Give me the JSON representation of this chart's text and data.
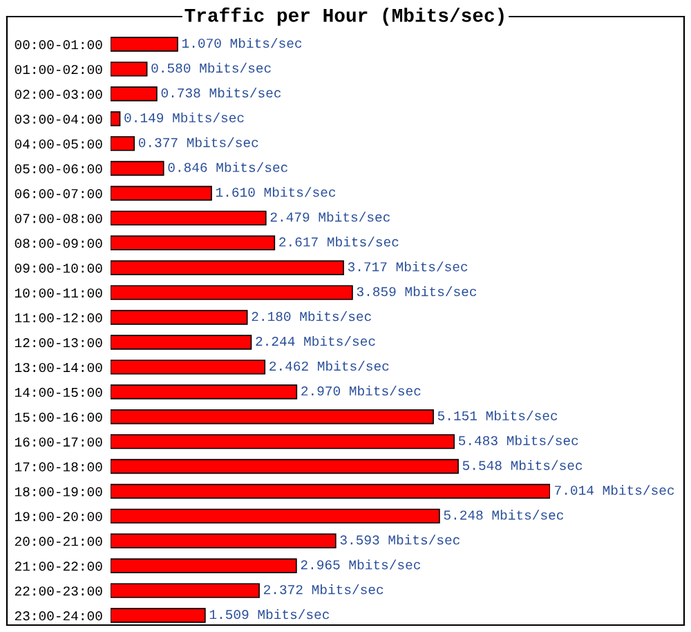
{
  "chart_data": {
    "type": "bar",
    "orientation": "horizontal",
    "title": "Traffic per Hour (Mbits/sec)",
    "categories": [
      "00:00-01:00",
      "01:00-02:00",
      "02:00-03:00",
      "03:00-04:00",
      "04:00-05:00",
      "05:00-06:00",
      "06:00-07:00",
      "07:00-08:00",
      "08:00-09:00",
      "09:00-10:00",
      "10:00-11:00",
      "11:00-12:00",
      "12:00-13:00",
      "13:00-14:00",
      "14:00-15:00",
      "15:00-16:00",
      "16:00-17:00",
      "17:00-18:00",
      "18:00-19:00",
      "19:00-20:00",
      "20:00-21:00",
      "21:00-22:00",
      "22:00-23:00",
      "23:00-24:00"
    ],
    "values": [
      1.07,
      0.58,
      0.738,
      0.149,
      0.377,
      0.846,
      1.61,
      2.479,
      2.617,
      3.717,
      3.859,
      2.18,
      2.244,
      2.462,
      2.97,
      5.151,
      5.483,
      5.548,
      7.014,
      5.248,
      3.593,
      2.965,
      2.372,
      1.509
    ],
    "value_labels": [
      "1.070 Mbits/sec",
      "0.580 Mbits/sec",
      "0.738 Mbits/sec",
      "0.149 Mbits/sec",
      "0.377 Mbits/sec",
      "0.846 Mbits/sec",
      "1.610 Mbits/sec",
      "2.479 Mbits/sec",
      "2.617 Mbits/sec",
      "3.717 Mbits/sec",
      "3.859 Mbits/sec",
      "2.180 Mbits/sec",
      "2.244 Mbits/sec",
      "2.462 Mbits/sec",
      "2.970 Mbits/sec",
      "5.151 Mbits/sec",
      "5.483 Mbits/sec",
      "5.548 Mbits/sec",
      "7.014 Mbits/sec",
      "5.248 Mbits/sec",
      "3.593 Mbits/sec",
      "2.965 Mbits/sec",
      "2.372 Mbits/sec",
      "1.509 Mbits/sec"
    ],
    "color": "#ff0000"
  }
}
